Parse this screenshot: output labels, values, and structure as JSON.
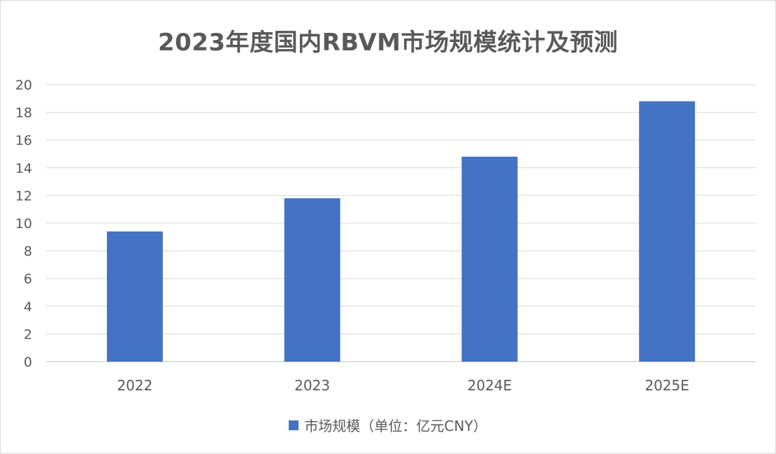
{
  "chart_data": {
    "type": "bar",
    "title": "2023年度国内RBVM市场规模统计及预测",
    "categories": [
      "2022",
      "2023",
      "2024E",
      "2025E"
    ],
    "series": [
      {
        "name": "市场规模（单位：亿元CNY）",
        "values": [
          9.4,
          11.8,
          14.8,
          18.8
        ]
      }
    ],
    "ylim": [
      0,
      20
    ],
    "yticks": [
      0,
      2,
      4,
      6,
      8,
      10,
      12,
      14,
      16,
      18,
      20
    ],
    "grid": true,
    "legend_position": "bottom",
    "bar_color": "#4472c4"
  }
}
